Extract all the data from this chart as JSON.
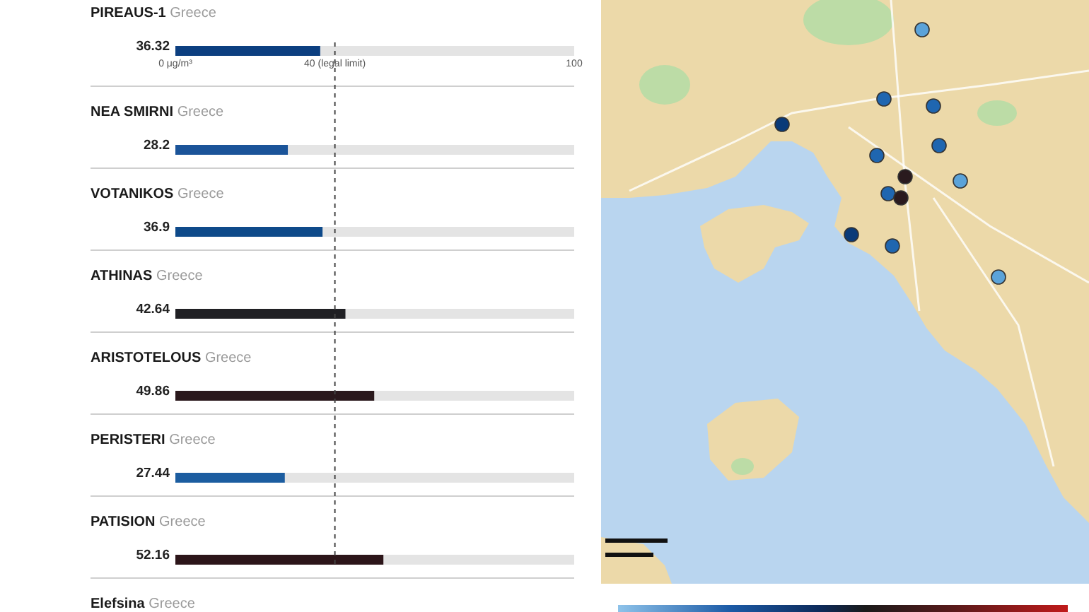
{
  "chart_data": {
    "type": "bar",
    "orientation": "horizontal",
    "categories": [
      "PIREAUS-1 Greece",
      "NEA SMIRNI Greece",
      "VOTANIKOS Greece",
      "ATHINAS Greece",
      "ARISTOTELOUS Greece",
      "PERISTERI Greece",
      "PATISION Greece",
      "Elefsina Greece"
    ],
    "values": [
      36.32,
      28.2,
      36.9,
      42.64,
      49.86,
      27.44,
      52.16,
      null
    ],
    "colors": [
      "#0c3f80",
      "#1b5499",
      "#0e4a8a",
      "#202024",
      "#2a181c",
      "#1c5da0",
      "#2c1519",
      null
    ],
    "xlim": [
      0,
      100
    ],
    "xticks": [
      {
        "value": 0,
        "label": "0 μg/m³"
      },
      {
        "value": 40,
        "label": "40 (legal limit)"
      },
      {
        "value": 100,
        "label": "100"
      }
    ],
    "ref_lines": [
      {
        "axis": "x",
        "value": 40,
        "line_style": "dashed",
        "color": "#444444"
      }
    ],
    "data_labels": true
  }
}
